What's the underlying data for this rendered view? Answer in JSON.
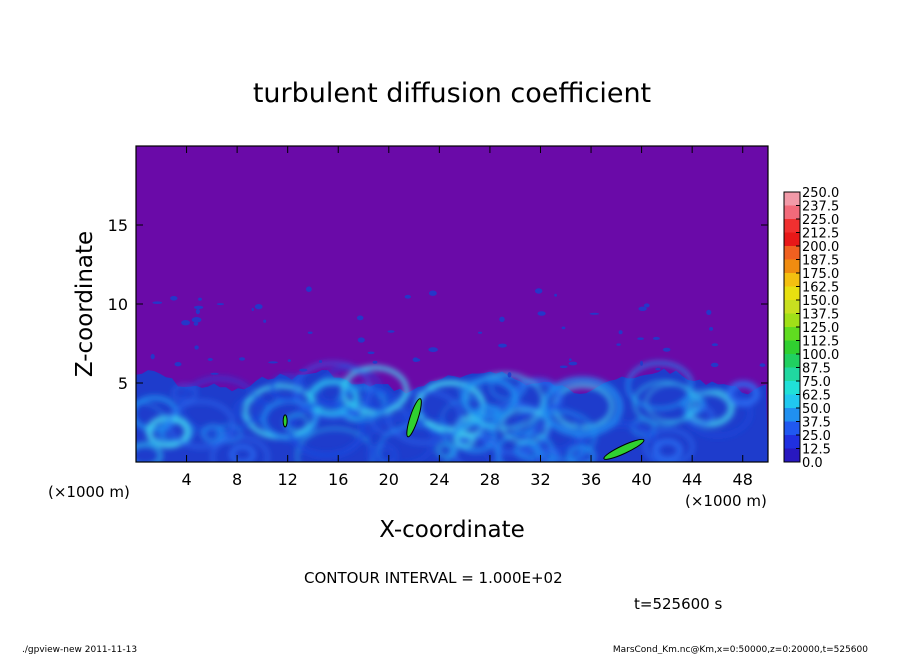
{
  "chart_data": {
    "type": "heatmap",
    "title": "turbulent diffusion coefficient",
    "xlabel": "X-coordinate",
    "ylabel": "Z-coordinate",
    "x_unit_left": "(×1000 m)",
    "x_unit_right": "(×1000 m)",
    "xlim": [
      0,
      50
    ],
    "ylim": [
      0,
      20
    ],
    "x_ticks": [
      4,
      8,
      12,
      16,
      20,
      24,
      28,
      32,
      36,
      40,
      44,
      48
    ],
    "y_ticks": [
      5,
      10,
      15
    ],
    "contour_interval": "CONTOUR INTERVAL = 1.000E+02",
    "time_label": "t=525600 s",
    "colorbar": {
      "labels": [
        "250.0",
        "237.5",
        "225.0",
        "212.5",
        "200.0",
        "187.5",
        "175.0",
        "162.5",
        "150.0",
        "137.5",
        "125.0",
        "112.5",
        "100.0",
        "87.5",
        "75.0",
        "62.5",
        "50.0",
        "37.5",
        "25.0",
        "12.5",
        "0.0"
      ],
      "colors": [
        "#f29aa8",
        "#f26a7a",
        "#f03030",
        "#e81818",
        "#f06020",
        "#f08c10",
        "#f4c010",
        "#e8e010",
        "#c8e020",
        "#a0e018",
        "#60dc20",
        "#30d030",
        "#20d060",
        "#20d8a0",
        "#20e0d8",
        "#20c8f0",
        "#2090f0",
        "#2058f0",
        "#2030e0",
        "#2818c0",
        "#6a0aa8"
      ]
    },
    "background_color": "#6a0aa8",
    "mixed_layer_top_km": 5.5
  },
  "footer": {
    "left": "./gpview-new  2011-11-13",
    "right": "MarsCond_Km.nc@Km,x=0:50000,z=0:20000,t=525600"
  }
}
